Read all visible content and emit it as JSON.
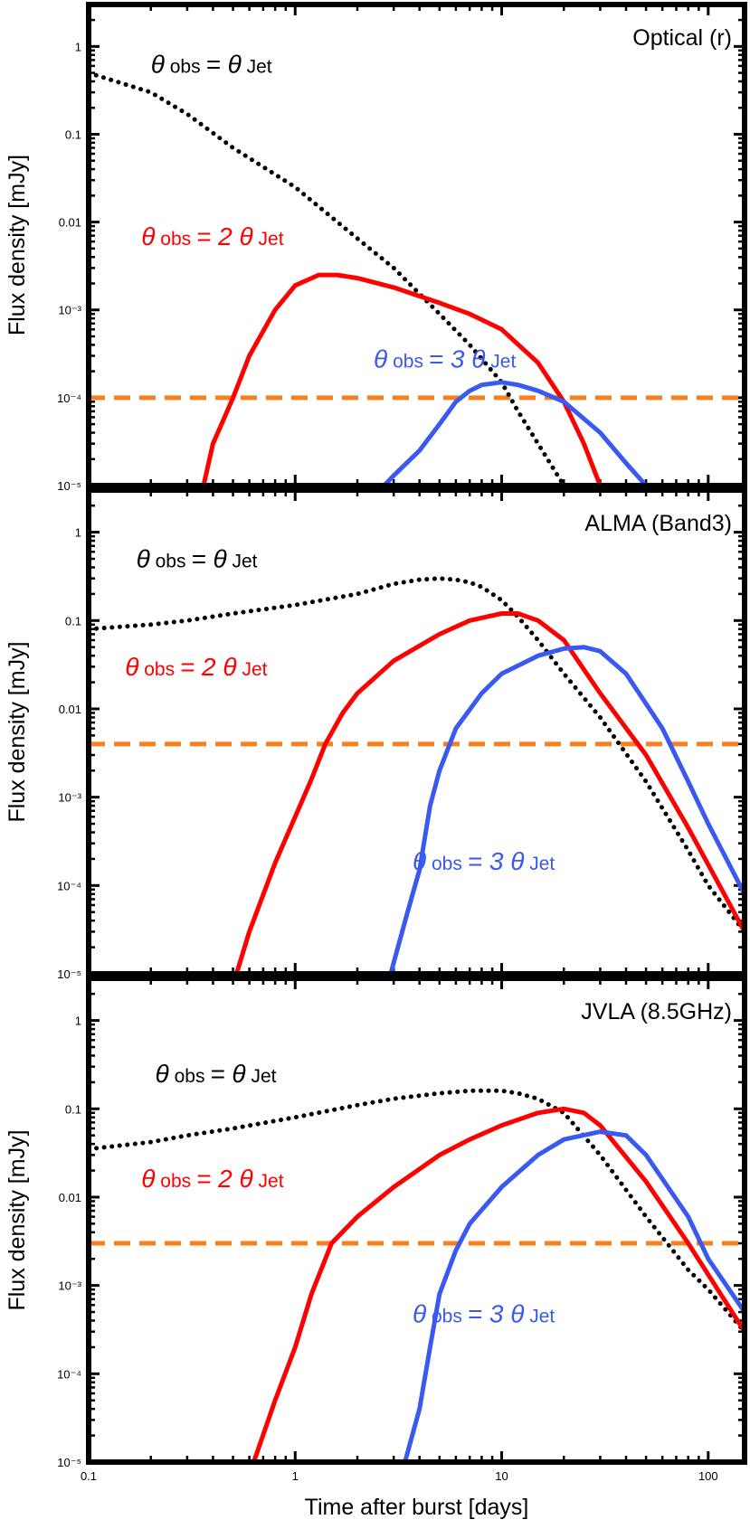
{
  "chart_data": [
    {
      "type": "line",
      "title": "Optical (r)",
      "xlabel": "",
      "ylabel": "Flux density [mJy]",
      "xscale": "log",
      "yscale": "log",
      "xlim": [
        0.1,
        150
      ],
      "ylim": [
        1e-05,
        3
      ],
      "yticks": [
        {
          "value": 1,
          "label": "1"
        },
        {
          "value": 0.1,
          "label": "0.1"
        },
        {
          "value": 0.01,
          "label": "0.01"
        },
        {
          "value": 0.001,
          "label": "10⁻³"
        },
        {
          "value": 0.0001,
          "label": "10⁻⁴"
        },
        {
          "value": 1e-05,
          "label": "10⁻⁵"
        }
      ],
      "threshold": {
        "value": 0.0001,
        "color": "#f97f1e",
        "style": "dashed"
      },
      "series": [
        {
          "name": "θobs = θJet",
          "color": "#000000",
          "style": "dotted",
          "label": {
            "big1": "θ",
            "sub1": "obs",
            "mid": "= ",
            "big2": "θ",
            "sub2": "Jet",
            "at": [
              0.2,
              0.5
            ]
          },
          "x": [
            0.1,
            0.2,
            0.3,
            0.5,
            1,
            2,
            3,
            5,
            7,
            10,
            12,
            15,
            20
          ],
          "y": [
            0.5,
            0.3,
            0.17,
            0.07,
            0.025,
            0.0065,
            0.003,
            0.0009,
            0.0004,
            0.00015,
            7e-05,
            3e-05,
            1e-05
          ]
        },
        {
          "name": "θobs = 2θJet",
          "color": "#ff0000",
          "style": "solid",
          "label": {
            "big1": "θ",
            "sub1": "obs",
            "mid": "= 2 ",
            "big2": "θ",
            "sub2": "Jet",
            "at": [
              0.18,
              0.0055
            ]
          },
          "x": [
            0.36,
            0.4,
            0.5,
            0.6,
            0.8,
            1,
            1.3,
            1.6,
            2,
            3,
            5,
            7,
            10,
            15,
            20,
            25,
            30
          ],
          "y": [
            1e-05,
            3e-05,
            0.0001,
            0.0003,
            0.001,
            0.0019,
            0.0025,
            0.0025,
            0.0023,
            0.0018,
            0.0012,
            0.0009,
            0.0006,
            0.00025,
            9e-05,
            3e-05,
            1e-05
          ]
        },
        {
          "name": "θobs = 3θJet",
          "color": "#3a59f0",
          "style": "solid",
          "label": {
            "big1": "θ",
            "sub1": "obs",
            "mid": "= 3 ",
            "big2": "θ",
            "sub2": "Jet",
            "at": [
              2.4,
              0.00022
            ]
          },
          "x": [
            2.7,
            3,
            4,
            5,
            6,
            7,
            8,
            10,
            12,
            15,
            20,
            30,
            40,
            50
          ],
          "y": [
            1e-05,
            1.3e-05,
            2.5e-05,
            5e-05,
            9e-05,
            0.00012,
            0.00014,
            0.00015,
            0.00014,
            0.00012,
            9e-05,
            4e-05,
            1.8e-05,
            1e-05
          ]
        }
      ]
    },
    {
      "type": "line",
      "title": "ALMA (Band3)",
      "xlabel": "",
      "ylabel": "Flux density [mJy]",
      "xscale": "log",
      "yscale": "log",
      "xlim": [
        0.1,
        150
      ],
      "ylim": [
        1e-05,
        3
      ],
      "yticks": [
        {
          "value": 1,
          "label": "1"
        },
        {
          "value": 0.1,
          "label": "0.1"
        },
        {
          "value": 0.01,
          "label": "0.01"
        },
        {
          "value": 0.001,
          "label": "10⁻³"
        },
        {
          "value": 0.0001,
          "label": "10⁻⁴"
        },
        {
          "value": 1e-05,
          "label": "10⁻⁵"
        }
      ],
      "threshold": {
        "value": 0.004,
        "color": "#f97f1e",
        "style": "dashed"
      },
      "series": [
        {
          "name": "θobs = θJet",
          "color": "#000000",
          "style": "dotted",
          "label": {
            "big1": "θ",
            "sub1": "obs",
            "mid": "= ",
            "big2": "θ",
            "sub2": "Jet",
            "at": [
              0.17,
              0.4
            ]
          },
          "x": [
            0.1,
            0.2,
            0.3,
            0.5,
            1,
            2,
            3,
            4,
            5,
            6,
            7,
            8,
            10,
            12,
            15,
            20,
            30,
            50,
            80,
            100,
            150
          ],
          "y": [
            0.08,
            0.09,
            0.1,
            0.12,
            0.15,
            0.2,
            0.26,
            0.29,
            0.3,
            0.29,
            0.27,
            0.24,
            0.17,
            0.11,
            0.06,
            0.025,
            0.008,
            0.0015,
            0.00025,
            0.0001,
            3e-05
          ]
        },
        {
          "name": "θobs = 2θJet",
          "color": "#ff0000",
          "style": "solid",
          "label": {
            "big1": "θ",
            "sub1": "obs",
            "mid": "= 2 ",
            "big2": "θ",
            "sub2": "Jet",
            "at": [
              0.15,
              0.024
            ]
          },
          "x": [
            0.52,
            0.6,
            0.8,
            1,
            1.2,
            1.4,
            1.7,
            2,
            3,
            5,
            7,
            10,
            12,
            15,
            20,
            30,
            50,
            80,
            150
          ],
          "y": [
            1e-05,
            3e-05,
            0.00018,
            0.0006,
            0.0016,
            0.004,
            0.009,
            0.015,
            0.035,
            0.07,
            0.1,
            0.12,
            0.12,
            0.1,
            0.06,
            0.015,
            0.003,
            0.00045,
            3e-05
          ]
        },
        {
          "name": "θobs = 3θJet",
          "color": "#3a59f0",
          "style": "solid",
          "label": {
            "big1": "θ",
            "sub1": "obs",
            "mid": "= 3 ",
            "big2": "θ",
            "sub2": "Jet",
            "at": [
              3.7,
              0.00015
            ]
          },
          "x": [
            2.9,
            3.5,
            4,
            4.5,
            5,
            6,
            8,
            10,
            15,
            20,
            25,
            30,
            40,
            60,
            80,
            100,
            150
          ],
          "y": [
            1e-05,
            5e-05,
            0.00015,
            0.0008,
            0.002,
            0.006,
            0.015,
            0.025,
            0.04,
            0.048,
            0.05,
            0.045,
            0.025,
            0.006,
            0.0015,
            0.0005,
            8e-05
          ]
        }
      ]
    },
    {
      "type": "line",
      "title": "JVLA (8.5GHz)",
      "xlabel": "Time after burst [days]",
      "ylabel": "Flux density [mJy]",
      "xscale": "log",
      "yscale": "log",
      "xlim": [
        0.1,
        150
      ],
      "ylim": [
        1e-05,
        3
      ],
      "xticks": [
        {
          "value": 0.1,
          "label": "0.1"
        },
        {
          "value": 1,
          "label": "1"
        },
        {
          "value": 10,
          "label": "10"
        },
        {
          "value": 100,
          "label": "100"
        }
      ],
      "yticks": [
        {
          "value": 1,
          "label": "1"
        },
        {
          "value": 0.1,
          "label": "0.1"
        },
        {
          "value": 0.01,
          "label": "0.01"
        },
        {
          "value": 0.001,
          "label": "10⁻³"
        },
        {
          "value": 0.0001,
          "label": "10⁻⁴"
        },
        {
          "value": 1e-05,
          "label": "10⁻⁵"
        }
      ],
      "threshold": {
        "value": 0.003,
        "color": "#f97f1e",
        "style": "dashed"
      },
      "series": [
        {
          "name": "θobs = θJet",
          "color": "#000000",
          "style": "dotted",
          "label": {
            "big1": "θ",
            "sub1": "obs",
            "mid": "= ",
            "big2": "θ",
            "sub2": "Jet",
            "at": [
              0.21,
              0.2
            ]
          },
          "x": [
            0.1,
            0.2,
            0.3,
            0.5,
            1,
            2,
            3,
            5,
            7,
            10,
            12,
            15,
            20,
            30,
            50,
            80,
            100,
            150
          ],
          "y": [
            0.035,
            0.042,
            0.05,
            0.06,
            0.08,
            0.11,
            0.13,
            0.15,
            0.16,
            0.16,
            0.15,
            0.13,
            0.09,
            0.03,
            0.006,
            0.0015,
            0.0009,
            0.0003
          ]
        },
        {
          "name": "θobs = 2θJet",
          "color": "#ff0000",
          "style": "solid",
          "label": {
            "big1": "θ",
            "sub1": "obs",
            "mid": "= 2 ",
            "big2": "θ",
            "sub2": "Jet",
            "at": [
              0.18,
              0.013
            ]
          },
          "x": [
            0.63,
            0.8,
            1,
            1.2,
            1.5,
            2,
            3,
            5,
            7,
            10,
            15,
            20,
            25,
            30,
            50,
            80,
            150
          ],
          "y": [
            1e-05,
            5e-05,
            0.0002,
            0.0008,
            0.003,
            0.006,
            0.013,
            0.03,
            0.045,
            0.065,
            0.09,
            0.1,
            0.09,
            0.065,
            0.015,
            0.003,
            0.0003
          ]
        },
        {
          "name": "θobs = 3θJet",
          "color": "#3a59f0",
          "style": "solid",
          "label": {
            "big1": "θ",
            "sub1": "obs",
            "mid": "= 3 ",
            "big2": "θ",
            "sub2": "Jet",
            "at": [
              3.7,
              0.00038
            ]
          },
          "x": [
            3.4,
            4,
            4.5,
            5,
            6,
            7,
            10,
            15,
            20,
            30,
            40,
            50,
            80,
            100,
            150
          ],
          "y": [
            1e-05,
            4e-05,
            0.0002,
            0.0008,
            0.0025,
            0.005,
            0.013,
            0.03,
            0.045,
            0.055,
            0.05,
            0.03,
            0.006,
            0.002,
            0.0005
          ]
        }
      ]
    }
  ]
}
